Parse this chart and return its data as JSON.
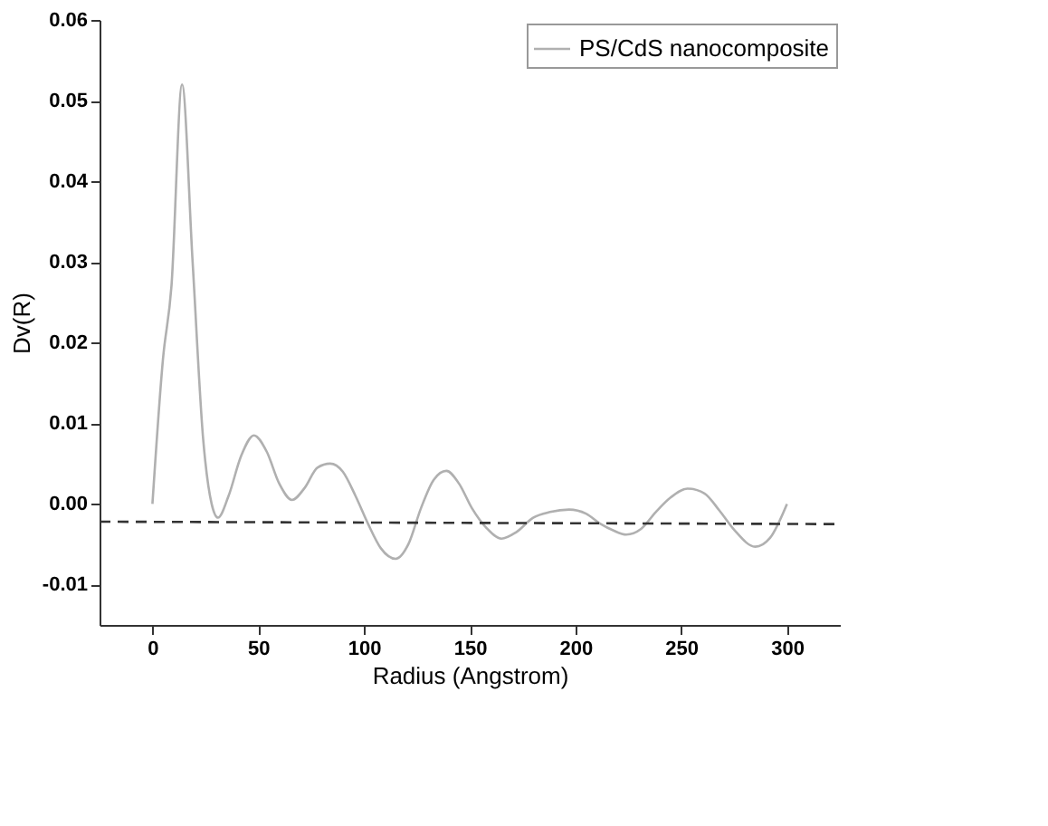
{
  "chart_data": {
    "type": "line",
    "xlabel": "Radius (Angstrom)",
    "ylabel": "Dv(R)",
    "xlim": [
      -25,
      325
    ],
    "xticks": [
      0,
      50,
      100,
      150,
      200,
      250,
      300
    ],
    "ylim": [
      -0.015,
      0.06
    ],
    "yticks": [
      {
        "value": -0.01,
        "label": "-0.01"
      },
      {
        "value": 0,
        "label": "0.00"
      },
      0.01,
      0.02,
      0.03,
      0.04,
      0.05,
      0.06
    ],
    "grid": false,
    "legend": "top right",
    "marker": "none",
    "series": [
      {
        "name": "PS/CdS nanocomposite",
        "color": "#b0b0b0",
        "line_style": "solid",
        "x": [
          0,
          5,
          9,
          14,
          19,
          24,
          28,
          31,
          36,
          42,
          48,
          54,
          60,
          66,
          72,
          78,
          84,
          90,
          96,
          102,
          108,
          115,
          121,
          127,
          133,
          139,
          145,
          151,
          158,
          165,
          172,
          180,
          188,
          197,
          205,
          212,
          218,
          224,
          231,
          238,
          245,
          253,
          261,
          268,
          275,
          285,
          292,
          300
        ],
        "values": [
          0.0,
          0.018,
          0.027,
          0.052,
          0.03,
          0.008,
          0.0,
          -0.0017,
          0.001,
          0.006,
          0.0085,
          0.0065,
          0.0025,
          0.0005,
          0.002,
          0.0045,
          0.005,
          0.004,
          0.001,
          -0.0025,
          -0.0055,
          -0.0068,
          -0.005,
          -0.0005,
          0.003,
          0.0041,
          0.0025,
          -0.0005,
          -0.003,
          -0.0043,
          -0.0035,
          -0.0017,
          -0.001,
          -0.0007,
          -0.0012,
          -0.0025,
          -0.0033,
          -0.0038,
          -0.0031,
          -0.001,
          0.0008,
          0.0019,
          0.0013,
          -0.0008,
          -0.0032,
          -0.0053,
          -0.0042,
          0.0
        ]
      },
      {
        "color": "#333333",
        "line_style": "dashed",
        "x": [
          -25,
          325
        ],
        "values": [
          -0.0022,
          -0.0025
        ]
      }
    ]
  }
}
